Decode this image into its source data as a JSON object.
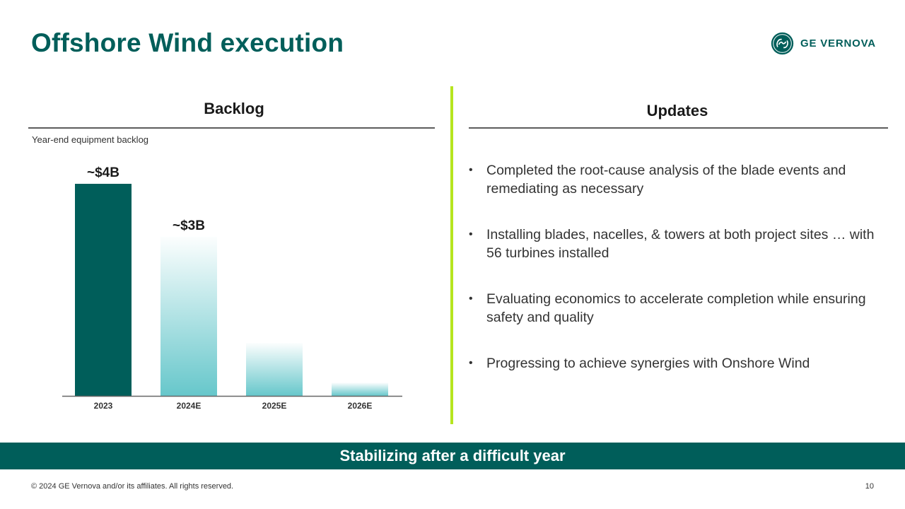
{
  "slide": {
    "title": "Offshore Wind execution",
    "banner": "Stabilizing after a difficult year",
    "footer": "© 2024 GE Vernova and/or its affiliates. All rights reserved.",
    "page_number": "10"
  },
  "logo": {
    "wordmark": "GE VERNOVA",
    "icon": "ge-monogram-icon",
    "color": "#005e5a"
  },
  "left_panel": {
    "heading": "Backlog",
    "subtitle": "Year-end equipment backlog"
  },
  "right_panel": {
    "heading": "Updates",
    "bullets": [
      "Completed the root-cause analysis of the blade events and remediating as necessary",
      "Installing blades, nacelles, & towers at both project sites … with 56 turbines installed",
      "Evaluating economics to accelerate completion while ensuring safety and quality",
      "Progressing to achieve synergies with Onshore Wind"
    ]
  },
  "colors": {
    "brand_teal": "#005e5a",
    "bar_light": "#5ec4c8",
    "divider_green": "#b6e51f"
  },
  "chart_data": {
    "type": "bar",
    "title": "",
    "xlabel": "",
    "ylabel": "",
    "categories": [
      "2023",
      "2024E",
      "2025E",
      "2026E"
    ],
    "values": [
      4,
      3,
      1,
      0.25
    ],
    "data_labels": [
      "~$4B",
      "~$3B",
      "",
      ""
    ],
    "ylim": [
      0,
      4
    ],
    "grid": false,
    "legend": "none"
  }
}
